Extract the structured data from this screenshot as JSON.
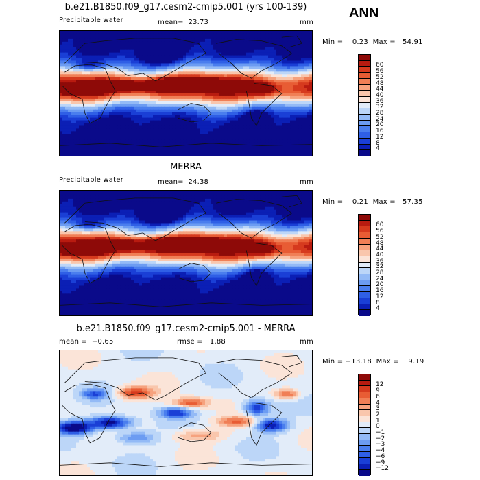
{
  "season": "ANN",
  "panels": [
    {
      "title": "b.e21.B1850.f09_g17.cesm2-cmip5.001 (yrs 100-139)",
      "left_label": "Precipitable water",
      "center_label": "mean=  23.73",
      "units": "mm",
      "minmax": "Min =    0.23  Max =   54.91",
      "colors": [
        "#0a0a8a",
        "#0b1fb5",
        "#1a3fd6",
        "#2f5fe6",
        "#4a7eee",
        "#6c9cf2",
        "#93baf6",
        "#bcd6f8",
        "#e2ecf9",
        "#fbe4d8",
        "#f9c6ac",
        "#f6a27e",
        "#f07f56",
        "#e85c34",
        "#d63a1e",
        "#b81b10",
        "#8e0a08"
      ],
      "ticks": [
        "4",
        "8",
        "12",
        "16",
        "20",
        "24",
        "28",
        "32",
        "36",
        "40",
        "44",
        "48",
        "52",
        "56",
        "60"
      ],
      "field": "abs"
    },
    {
      "title": "MERRA",
      "left_label": "Precipitable water",
      "center_label": "mean=  24.38",
      "units": "mm",
      "minmax": "Min =    0.21  Max =   57.35",
      "colors": [
        "#0a0a8a",
        "#0b1fb5",
        "#1a3fd6",
        "#2f5fe6",
        "#4a7eee",
        "#6c9cf2",
        "#93baf6",
        "#bcd6f8",
        "#e2ecf9",
        "#fbe4d8",
        "#f9c6ac",
        "#f6a27e",
        "#f07f56",
        "#e85c34",
        "#d63a1e",
        "#b81b10",
        "#8e0a08"
      ],
      "ticks": [
        "4",
        "8",
        "12",
        "16",
        "20",
        "24",
        "28",
        "32",
        "36",
        "40",
        "44",
        "48",
        "52",
        "56",
        "60"
      ],
      "field": "abs"
    },
    {
      "title": "b.e21.B1850.f09_g17.cesm2-cmip5.001 - MERRA",
      "left_label": "mean =  −0.65",
      "center_label": "rmse =   1.88",
      "units": "mm",
      "minmax": "Min = −13.18  Max =    9.19",
      "colors": [
        "#0a0a8a",
        "#0b1fb5",
        "#1a3fd6",
        "#2f5fe6",
        "#4a7eee",
        "#6c9cf2",
        "#93baf6",
        "#bcd6f8",
        "#e2ecf9",
        "#fbe4d8",
        "#f9c6ac",
        "#f6a27e",
        "#f07f56",
        "#e85c34",
        "#d63a1e",
        "#b81b10",
        "#8e0a08"
      ],
      "ticks": [
        "−12",
        "−9",
        "−6",
        "−4",
        "−3",
        "−2",
        "−1",
        "0",
        "1",
        "2",
        "3",
        "4",
        "6",
        "9",
        "12"
      ],
      "field": "diff"
    }
  ]
}
